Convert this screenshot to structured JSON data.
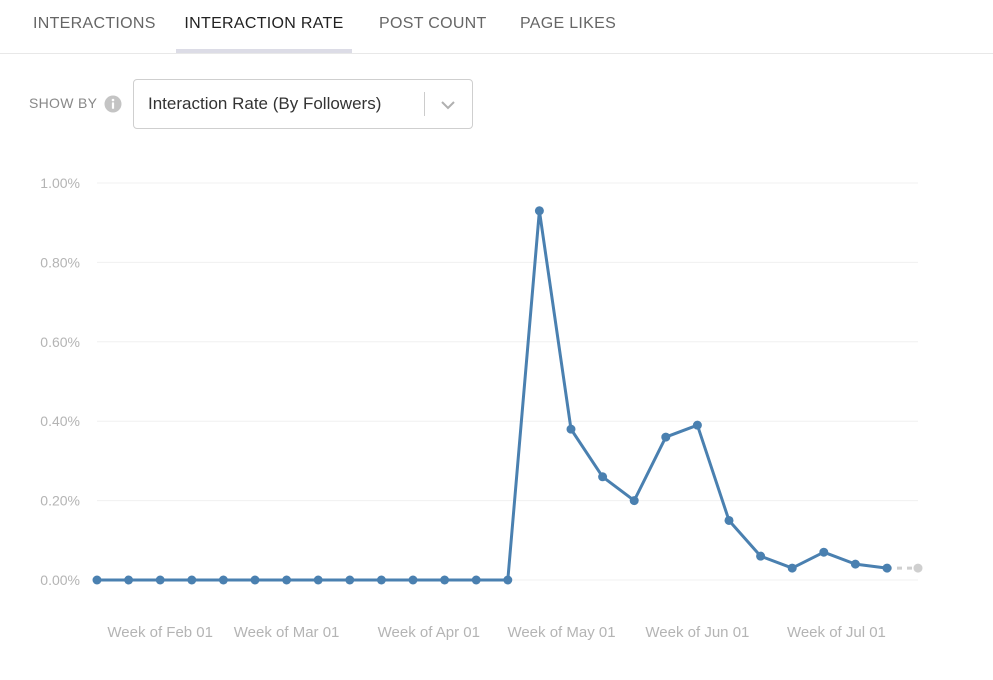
{
  "tabs": [
    {
      "label": "INTERACTIONS",
      "active": false
    },
    {
      "label": "INTERACTION RATE",
      "active": true
    },
    {
      "label": "POST COUNT",
      "active": false
    },
    {
      "label": "PAGE LIKES",
      "active": false
    }
  ],
  "show_by": {
    "label": "SHOW BY",
    "info_icon": "info-icon",
    "selected": "Interaction Rate (By Followers)",
    "chevron_icon": "chevron-down-icon"
  },
  "chart_data": {
    "type": "line",
    "title": "",
    "xlabel": "",
    "ylabel": "",
    "ylim": [
      0,
      1.0
    ],
    "y_ticks": [
      "0.00%",
      "0.20%",
      "0.40%",
      "0.60%",
      "0.80%",
      "1.00%"
    ],
    "y_tick_values": [
      0,
      0.2,
      0.4,
      0.6,
      0.8,
      1.0
    ],
    "x_tick_labels": [
      "Week of Feb 01",
      "Week of Mar 01",
      "Week of Apr 01",
      "Week of May 01",
      "Week of Jun 01",
      "Week of Jul 01"
    ],
    "x_tick_index": [
      2,
      6,
      10.5,
      14.7,
      19,
      23.4
    ],
    "grid": true,
    "series": [
      {
        "color": "#4a80b0",
        "values": [
          0,
          0,
          0,
          0,
          0,
          0,
          0,
          0,
          0,
          0,
          0,
          0,
          0,
          0,
          0.93,
          0.38,
          0.26,
          0.2,
          0.36,
          0.39,
          0.15,
          0.06,
          0.03,
          0.07,
          0.04,
          0.03
        ]
      }
    ],
    "projection": {
      "color": "#cfcfcf",
      "value": 0.03
    }
  }
}
